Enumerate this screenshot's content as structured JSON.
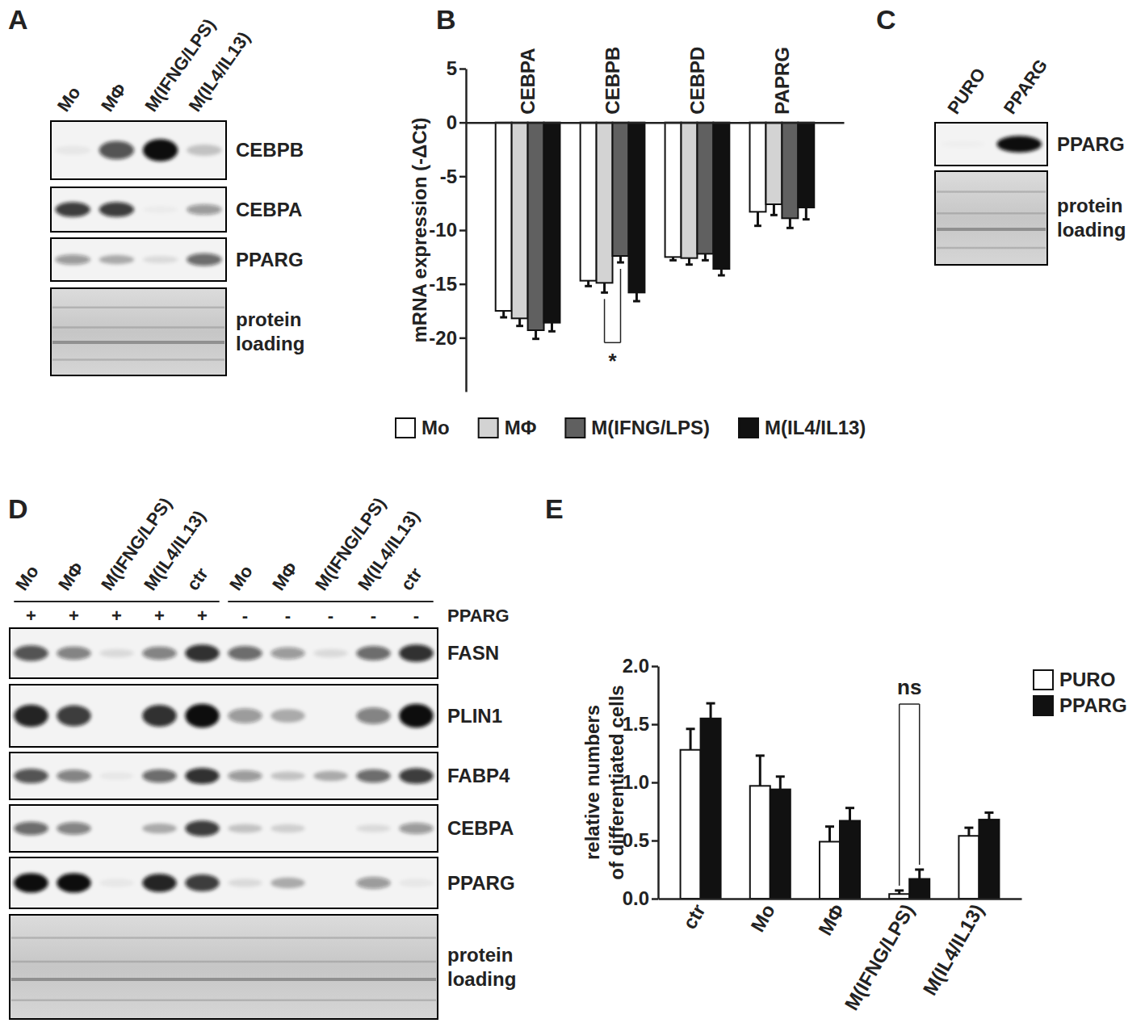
{
  "panel_labels": [
    "A",
    "B",
    "C",
    "D",
    "E"
  ],
  "chart_data": [
    {
      "type": "bar",
      "categories": [
        "CEBPA",
        "CEBPB",
        "CEBPD",
        "PAPRG"
      ],
      "series": [
        {
          "name": "Mo",
          "color": "#ffffff",
          "values": [
            -17.5,
            -14.7,
            -12.5,
            -8.3
          ],
          "errors": [
            0.6,
            0.5,
            0.3,
            1.3
          ]
        },
        {
          "name": "MΦ",
          "color": "#d3d3d3",
          "values": [
            -18.2,
            -14.9,
            -12.6,
            -7.6
          ],
          "errors": [
            0.7,
            0.9,
            0.6,
            1.0
          ]
        },
        {
          "name": "M(IFNG/LPS)",
          "color": "#606060",
          "values": [
            -19.3,
            -12.4,
            -12.2,
            -8.9
          ],
          "errors": [
            0.8,
            0.6,
            0.6,
            0.9
          ]
        },
        {
          "name": "M(IL4/IL13)",
          "color": "#111111",
          "values": [
            -18.6,
            -15.8,
            -13.6,
            -7.9
          ],
          "errors": [
            0.8,
            0.8,
            0.6,
            1.1
          ]
        }
      ],
      "y_label": "mRNA expression (-ΔCt)",
      "ylim": [
        -25,
        5
      ],
      "yticks": [
        -20,
        -15,
        -10,
        -5,
        0,
        5
      ],
      "legend": "bottom",
      "annotations": [
        {
          "text": "*",
          "category": "CEBPB",
          "between": [
            "MΦ",
            "M(IFNG/LPS)"
          ]
        }
      ]
    },
    {
      "type": "bar",
      "categories": [
        "ctr",
        "Mo",
        "MΦ",
        "M(IFNG/LPS)",
        "M(IL4/IL13)"
      ],
      "series": [
        {
          "name": "PURO",
          "color": "#ffffff",
          "values": [
            1.28,
            0.97,
            0.49,
            0.04,
            0.54
          ],
          "errors": [
            0.18,
            0.26,
            0.13,
            0.03,
            0.07
          ]
        },
        {
          "name": "PPARG",
          "color": "#111111",
          "values": [
            1.55,
            0.94,
            0.67,
            0.17,
            0.68
          ],
          "errors": [
            0.13,
            0.11,
            0.11,
            0.08,
            0.06
          ]
        }
      ],
      "y_label": [
        "relative numbers",
        "of differentiated cells"
      ],
      "ylim": [
        0,
        2
      ],
      "yticks": [
        {
          "value": 0,
          "label": "0.0"
        },
        {
          "value": 0.5,
          "label": "0.5"
        },
        {
          "value": 1,
          "label": "1.0"
        },
        {
          "value": 1.5,
          "label": "1.5"
        },
        {
          "value": 2,
          "label": "2.0"
        }
      ],
      "legend": "right",
      "annotations": [
        {
          "text": "ns",
          "category": "M(IFNG/LPS)",
          "between": [
            "PURO",
            "PPARG"
          ]
        }
      ]
    }
  ],
  "blots": [
    {
      "lanes": [
        "Mo",
        "MΦ",
        "M(IFNG/LPS)",
        "M(IL4/IL13)"
      ],
      "rows": [
        {
          "label": "CEBPB",
          "intensity": [
            0.05,
            0.7,
            1.0,
            0.2
          ]
        },
        {
          "label": "CEBPA",
          "intensity": [
            0.8,
            0.8,
            0.03,
            0.4
          ]
        },
        {
          "label": "PPARG",
          "intensity": [
            0.4,
            0.3,
            0.1,
            0.6
          ]
        }
      ],
      "loading_label": [
        "protein",
        "loading"
      ]
    },
    {
      "lanes": [
        "PURO",
        "PPARG"
      ],
      "rows": [
        {
          "label": "PPARG",
          "intensity": [
            0.02,
            1.0
          ]
        }
      ],
      "loading_label": [
        "protein",
        "loading"
      ]
    },
    {
      "lanes": [
        "Mo",
        "MΦ",
        "M(IFNG/LPS)",
        "M(IL4/IL13)",
        "ctr",
        "Mo",
        "MΦ",
        "M(IFNG/LPS)",
        "M(IL4/IL13)",
        "ctr"
      ],
      "treatment": {
        "label": "PPARG",
        "signs": [
          "+",
          "+",
          "+",
          "+",
          "+",
          "-",
          "-",
          "-",
          "-",
          "-"
        ]
      },
      "rows": [
        {
          "label": "FASN",
          "intensity": [
            0.7,
            0.5,
            0.1,
            0.5,
            0.85,
            0.6,
            0.4,
            0.1,
            0.6,
            0.85
          ]
        },
        {
          "label": "PLIN1",
          "intensity": [
            0.9,
            0.8,
            0.0,
            0.85,
            1.0,
            0.4,
            0.3,
            0.0,
            0.5,
            1.0
          ]
        },
        {
          "label": "FABP4",
          "intensity": [
            0.7,
            0.5,
            0.05,
            0.6,
            0.85,
            0.4,
            0.2,
            0.3,
            0.6,
            0.8
          ]
        },
        {
          "label": "CEBPA",
          "intensity": [
            0.6,
            0.5,
            0.0,
            0.3,
            0.8,
            0.2,
            0.15,
            0.0,
            0.1,
            0.4
          ]
        },
        {
          "label": "PPARG",
          "intensity": [
            1.0,
            1.0,
            0.05,
            0.9,
            0.8,
            0.1,
            0.3,
            0.0,
            0.4,
            0.05
          ]
        }
      ],
      "loading_label": [
        "protein",
        "loading"
      ]
    }
  ]
}
